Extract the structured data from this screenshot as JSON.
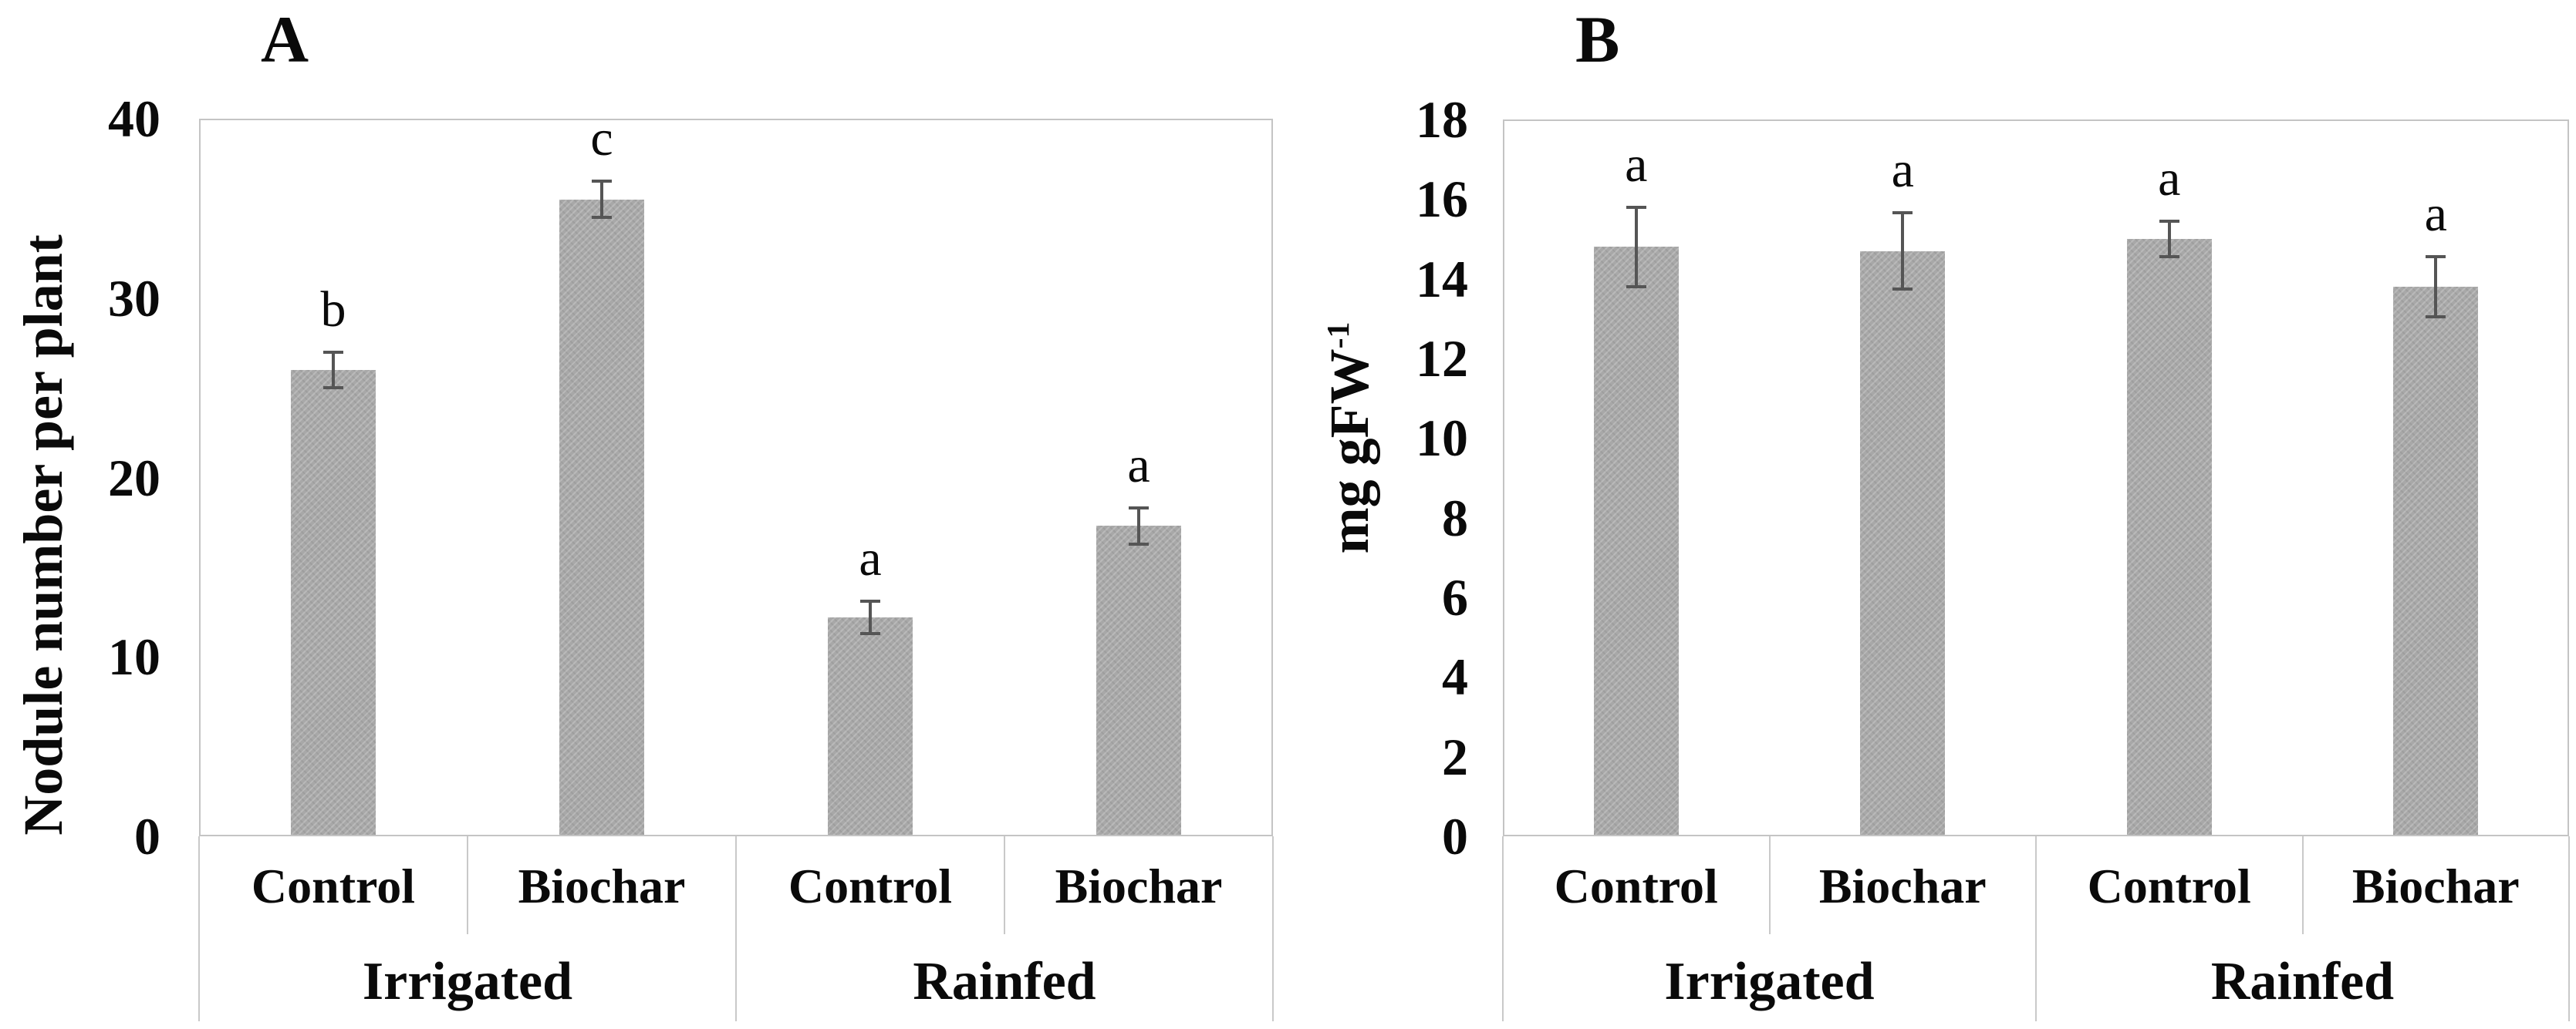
{
  "chart_data": [
    {
      "type": "bar",
      "panel_label": "A",
      "ylabel": "Nodule number per plant",
      "ylim": [
        0,
        40
      ],
      "yticks": [
        0,
        10,
        20,
        30,
        40
      ],
      "grid": false,
      "legend": null,
      "group_labels": [
        "Irrigated",
        "Rainfed"
      ],
      "categories": [
        "Control",
        "Biochar",
        "Control",
        "Biochar"
      ],
      "values": [
        26.0,
        35.5,
        12.2,
        17.3
      ],
      "errors": [
        1.0,
        1.0,
        0.9,
        1.0
      ],
      "sig_letters": [
        "b",
        "c",
        "a",
        "a"
      ]
    },
    {
      "type": "bar",
      "panel_label": "B",
      "ylabel": "mg gFW-1",
      "ylabel_base": "mg gFW",
      "ylabel_superscript": "-1",
      "ylim": [
        0,
        18
      ],
      "yticks": [
        0,
        2,
        4,
        6,
        8,
        10,
        12,
        14,
        16,
        18
      ],
      "grid": false,
      "legend": null,
      "group_labels": [
        "Irrigated",
        "Rainfed"
      ],
      "categories": [
        "Control",
        "Biochar",
        "Control",
        "Biochar"
      ],
      "values": [
        14.8,
        14.7,
        15.0,
        13.8
      ],
      "errors": [
        1.0,
        0.95,
        0.45,
        0.75
      ],
      "sig_letters": [
        "a",
        "a",
        "a",
        "a"
      ]
    }
  ],
  "colors": {
    "bar": "#a8a8a8",
    "frame": "#c4c4c4",
    "error_bar": "#555555",
    "text": "#0a0a0a",
    "background": "#ffffff"
  }
}
